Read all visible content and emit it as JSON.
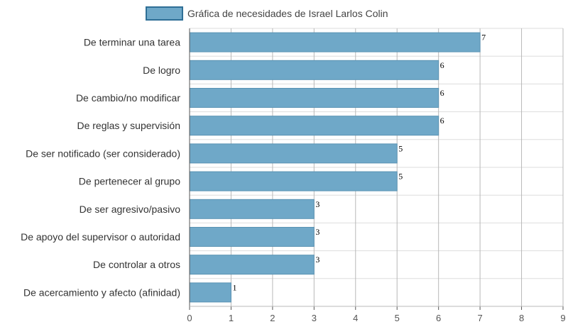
{
  "chart_data": {
    "type": "bar",
    "orientation": "horizontal",
    "title": "",
    "xlabel": "",
    "ylabel": "",
    "categories": [
      "De terminar una tarea",
      "De logro",
      "De cambio/no modificar",
      "De reglas y supervisión",
      "De ser notificado (ser considerado)",
      "De pertenecer al grupo",
      "De ser agresivo/pasivo",
      "De apoyo del supervisor o autoridad",
      "De controlar a otros",
      "De acercamiento y afecto (afinidad)"
    ],
    "series": [
      {
        "name": "Gráfica de necesidades de Israel Larlos Colin",
        "values": [
          7,
          6,
          6,
          6,
          5,
          5,
          3,
          3,
          3,
          1
        ],
        "color": "#6fa8c8"
      }
    ],
    "xlim": [
      0,
      9
    ],
    "xticks": [
      "0",
      "1",
      "2",
      "3",
      "4",
      "5",
      "6",
      "7",
      "8",
      "9"
    ],
    "grid": true,
    "data_labels": true,
    "legend_position": "top-center",
    "colors": {
      "bar_fill": "#6fa8c8",
      "bar_stroke": "#5a93b3",
      "legend_border": "#2f6f96",
      "grid": "#dddddd",
      "grid_strong": "#b8b8b8",
      "axis": "#555555"
    }
  }
}
